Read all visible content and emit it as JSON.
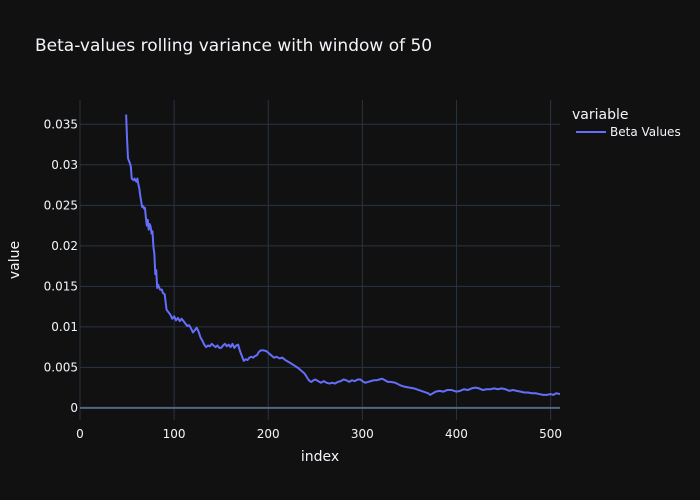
{
  "chart_data": {
    "type": "line",
    "title": "Beta-values rolling variance with window of 50",
    "xlabel": "index",
    "ylabel": "value",
    "xlim": [
      0,
      510
    ],
    "ylim": [
      -0.0015,
      0.038
    ],
    "x_ticks": [
      0,
      100,
      200,
      300,
      400,
      500
    ],
    "x_tick_labels": [
      "0",
      "100",
      "200",
      "300",
      "400",
      "500"
    ],
    "y_ticks": [
      0,
      0.005,
      0.01,
      0.015,
      0.02,
      0.025,
      0.03,
      0.035
    ],
    "y_tick_labels": [
      "0",
      "0.005",
      "0.01",
      "0.015",
      "0.02",
      "0.025",
      "0.03",
      "0.035"
    ],
    "grid": true,
    "legend": {
      "title": "variable",
      "placement": "top-right"
    },
    "series": [
      {
        "name": "Beta Values",
        "color": "#636efa",
        "points": [
          [
            49,
            0.0362
          ],
          [
            50,
            0.0332
          ],
          [
            51,
            0.0308
          ],
          [
            53,
            0.0302
          ],
          [
            54,
            0.0298
          ],
          [
            55,
            0.0283
          ],
          [
            57,
            0.0281
          ],
          [
            58,
            0.0283
          ],
          [
            60,
            0.0279
          ],
          [
            61,
            0.0283
          ],
          [
            62,
            0.0276
          ],
          [
            63,
            0.0271
          ],
          [
            64,
            0.0262
          ],
          [
            65,
            0.0255
          ],
          [
            66,
            0.0248
          ],
          [
            67,
            0.0249
          ],
          [
            68,
            0.0246
          ],
          [
            69,
            0.0247
          ],
          [
            70,
            0.0235
          ],
          [
            71,
            0.0225
          ],
          [
            72,
            0.0232
          ],
          [
            73,
            0.022
          ],
          [
            74,
            0.0227
          ],
          [
            75,
            0.0224
          ],
          [
            76,
            0.0215
          ],
          [
            77,
            0.0218
          ],
          [
            78,
            0.0199
          ],
          [
            79,
            0.019
          ],
          [
            80,
            0.0165
          ],
          [
            81,
            0.017
          ],
          [
            82,
            0.0148
          ],
          [
            83,
            0.0152
          ],
          [
            85,
            0.0146
          ],
          [
            87,
            0.0146
          ],
          [
            88,
            0.0142
          ],
          [
            90,
            0.014
          ],
          [
            91,
            0.013
          ],
          [
            92,
            0.0121
          ],
          [
            94,
            0.0118
          ],
          [
            96,
            0.0115
          ],
          [
            98,
            0.011
          ],
          [
            100,
            0.0113
          ],
          [
            102,
            0.0108
          ],
          [
            104,
            0.0111
          ],
          [
            106,
            0.0107
          ],
          [
            108,
            0.011
          ],
          [
            110,
            0.0107
          ],
          [
            112,
            0.0104
          ],
          [
            114,
            0.0101
          ],
          [
            116,
            0.0102
          ],
          [
            118,
            0.0098
          ],
          [
            120,
            0.0093
          ],
          [
            122,
            0.0096
          ],
          [
            124,
            0.0099
          ],
          [
            126,
            0.0094
          ],
          [
            128,
            0.0087
          ],
          [
            130,
            0.0083
          ],
          [
            132,
            0.0078
          ],
          [
            134,
            0.0075
          ],
          [
            136,
            0.0077
          ],
          [
            138,
            0.0076
          ],
          [
            140,
            0.0079
          ],
          [
            142,
            0.0077
          ],
          [
            144,
            0.0075
          ],
          [
            146,
            0.0077
          ],
          [
            148,
            0.0074
          ],
          [
            150,
            0.0074
          ],
          [
            152,
            0.0077
          ],
          [
            154,
            0.0079
          ],
          [
            156,
            0.0076
          ],
          [
            158,
            0.0078
          ],
          [
            160,
            0.0075
          ],
          [
            162,
            0.0079
          ],
          [
            164,
            0.0074
          ],
          [
            166,
            0.0077
          ],
          [
            168,
            0.0078
          ],
          [
            170,
            0.007
          ],
          [
            172,
            0.0064
          ],
          [
            174,
            0.0058
          ],
          [
            176,
            0.006
          ],
          [
            178,
            0.0059
          ],
          [
            180,
            0.0062
          ],
          [
            182,
            0.0063
          ],
          [
            184,
            0.0062
          ],
          [
            186,
            0.0064
          ],
          [
            188,
            0.0065
          ],
          [
            190,
            0.0069
          ],
          [
            192,
            0.0071
          ],
          [
            195,
            0.0071
          ],
          [
            198,
            0.007
          ],
          [
            200,
            0.0068
          ],
          [
            203,
            0.0065
          ],
          [
            206,
            0.0062
          ],
          [
            209,
            0.0063
          ],
          [
            212,
            0.0061
          ],
          [
            215,
            0.0062
          ],
          [
            218,
            0.0059
          ],
          [
            221,
            0.0057
          ],
          [
            224,
            0.0055
          ],
          [
            228,
            0.0052
          ],
          [
            232,
            0.0049
          ],
          [
            235,
            0.0046
          ],
          [
            238,
            0.0043
          ],
          [
            240,
            0.004
          ],
          [
            242,
            0.0036
          ],
          [
            244,
            0.0033
          ],
          [
            246,
            0.0032
          ],
          [
            248,
            0.0034
          ],
          [
            250,
            0.0035
          ],
          [
            253,
            0.0033
          ],
          [
            256,
            0.0031
          ],
          [
            259,
            0.0033
          ],
          [
            262,
            0.0031
          ],
          [
            265,
            0.003
          ],
          [
            268,
            0.0031
          ],
          [
            271,
            0.003
          ],
          [
            274,
            0.0032
          ],
          [
            277,
            0.0033
          ],
          [
            280,
            0.0035
          ],
          [
            283,
            0.0034
          ],
          [
            286,
            0.0032
          ],
          [
            289,
            0.0034
          ],
          [
            292,
            0.0033
          ],
          [
            295,
            0.0035
          ],
          [
            298,
            0.0035
          ],
          [
            300,
            0.0033
          ],
          [
            303,
            0.0031
          ],
          [
            306,
            0.0032
          ],
          [
            309,
            0.0033
          ],
          [
            312,
            0.0034
          ],
          [
            315,
            0.0034
          ],
          [
            318,
            0.0035
          ],
          [
            321,
            0.0036
          ],
          [
            324,
            0.0034
          ],
          [
            327,
            0.0032
          ],
          [
            330,
            0.0032
          ],
          [
            335,
            0.0031
          ],
          [
            340,
            0.0028
          ],
          [
            345,
            0.0026
          ],
          [
            350,
            0.0025
          ],
          [
            355,
            0.0024
          ],
          [
            360,
            0.0022
          ],
          [
            365,
            0.002
          ],
          [
            370,
            0.0018
          ],
          [
            372,
            0.0016
          ],
          [
            375,
            0.0018
          ],
          [
            378,
            0.002
          ],
          [
            382,
            0.0021
          ],
          [
            386,
            0.002
          ],
          [
            390,
            0.0022
          ],
          [
            395,
            0.0022
          ],
          [
            400,
            0.002
          ],
          [
            404,
            0.0021
          ],
          [
            408,
            0.0023
          ],
          [
            412,
            0.0022
          ],
          [
            416,
            0.0024
          ],
          [
            420,
            0.0025
          ],
          [
            424,
            0.0024
          ],
          [
            428,
            0.0022
          ],
          [
            432,
            0.0023
          ],
          [
            436,
            0.0023
          ],
          [
            440,
            0.0024
          ],
          [
            444,
            0.0023
          ],
          [
            448,
            0.0024
          ],
          [
            452,
            0.0023
          ],
          [
            456,
            0.0021
          ],
          [
            460,
            0.0022
          ],
          [
            464,
            0.0021
          ],
          [
            468,
            0.002
          ],
          [
            472,
            0.0019
          ],
          [
            476,
            0.0019
          ],
          [
            480,
            0.0018
          ],
          [
            484,
            0.0018
          ],
          [
            488,
            0.0017
          ],
          [
            492,
            0.0016
          ],
          [
            496,
            0.0016
          ],
          [
            500,
            0.0017
          ],
          [
            503,
            0.0016
          ],
          [
            506,
            0.0018
          ],
          [
            510,
            0.0017
          ]
        ]
      }
    ]
  }
}
